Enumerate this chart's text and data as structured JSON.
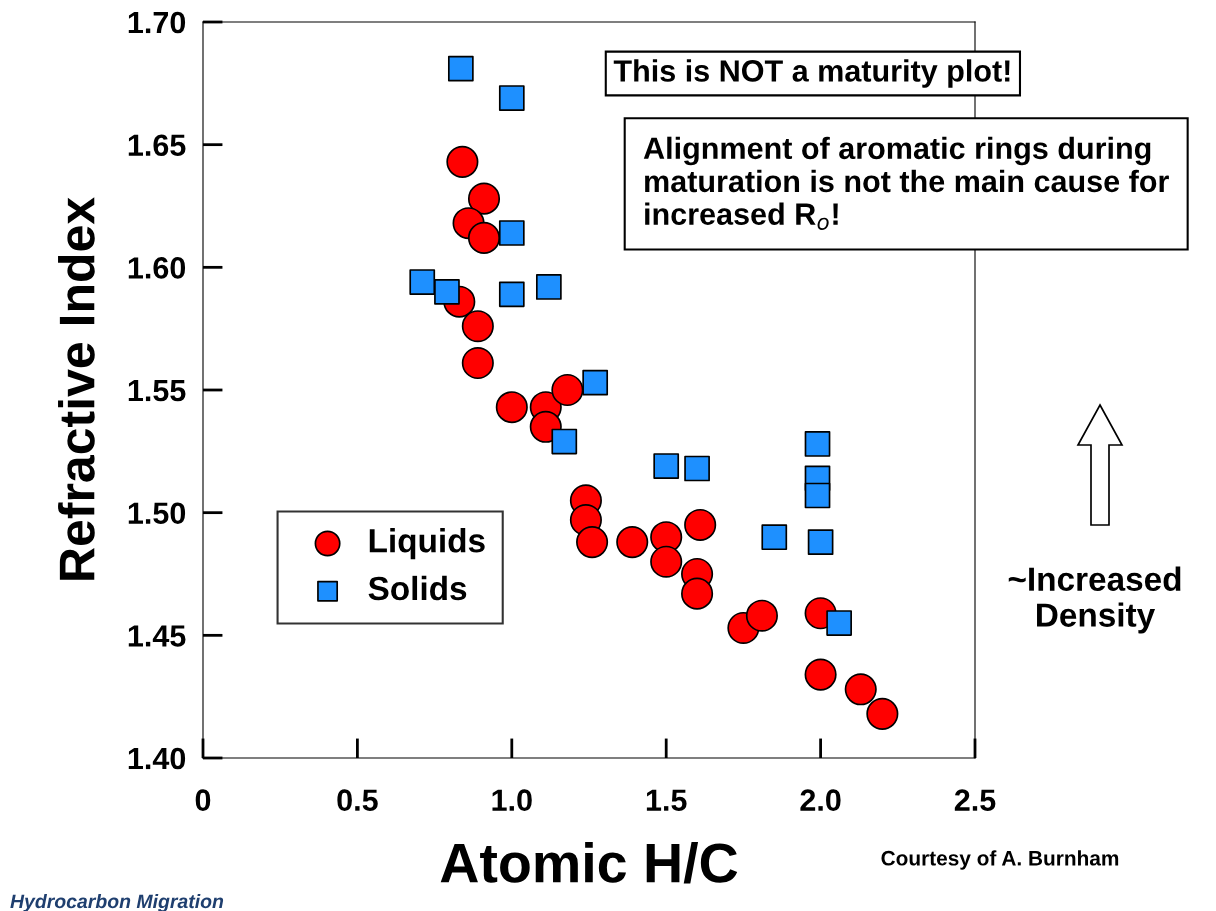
{
  "chart_data": {
    "type": "scatter",
    "xlabel": "Atomic H/C",
    "ylabel": "Refractive Index",
    "xlim": [
      0,
      2.5
    ],
    "xticks": [
      0,
      {
        "value": 0.5,
        "label": "0.5"
      },
      {
        "value": 1.0,
        "label": "1.0"
      },
      {
        "value": 1.5,
        "label": "1.5"
      },
      {
        "value": 2.0,
        "label": "2.0"
      },
      {
        "value": 2.5,
        "label": "2.5"
      }
    ],
    "ylim": [
      1.4,
      1.7
    ],
    "yticks": [
      {
        "value": 1.4,
        "label": "1.40"
      },
      {
        "value": 1.45,
        "label": "1.45"
      },
      {
        "value": 1.5,
        "label": "1.50"
      },
      {
        "value": 1.55,
        "label": "1.55"
      },
      {
        "value": 1.6,
        "label": "1.60"
      },
      {
        "value": 1.65,
        "label": "1.65"
      },
      {
        "value": 1.7,
        "label": "1.70"
      }
    ],
    "grid": false,
    "legend": "left",
    "series": [
      {
        "name": "Liquids",
        "color": "#ff0000",
        "marker": "circle",
        "x": [
          0.84,
          0.91,
          0.86,
          0.91,
          0.83,
          0.89,
          0.89,
          1.0,
          1.11,
          1.11,
          1.18,
          1.24,
          1.24,
          1.26,
          1.39,
          1.5,
          1.5,
          1.61,
          1.6,
          1.6,
          1.75,
          1.81,
          2.0,
          2.0,
          2.13,
          2.2
        ],
        "values": [
          1.643,
          1.628,
          1.618,
          1.612,
          1.586,
          1.576,
          1.561,
          1.543,
          1.543,
          1.535,
          1.55,
          1.505,
          1.497,
          1.488,
          1.488,
          1.49,
          1.48,
          1.495,
          1.475,
          1.467,
          1.453,
          1.458,
          1.459,
          1.434,
          1.428,
          1.418
        ]
      },
      {
        "name": "Solids",
        "color": "#1e90ff",
        "marker": "square",
        "x": [
          0.835,
          1.0,
          1.0,
          0.71,
          0.79,
          1.0,
          1.12,
          1.27,
          1.17,
          1.5,
          1.6,
          1.99,
          1.99,
          1.99,
          1.85,
          2.0,
          2.06
        ],
        "values": [
          1.681,
          1.669,
          1.614,
          1.594,
          1.59,
          1.589,
          1.592,
          1.553,
          1.529,
          1.519,
          1.518,
          1.528,
          1.514,
          1.507,
          1.49,
          1.488,
          1.455
        ]
      }
    ],
    "annotations": [
      "This is NOT a maturity plot!",
      "Alignment of aromatic rings during maturation is not the main cause for increased R$_{o}$!",
      "~Increased Density",
      "Courtesy of A. Burnham",
      "Hydrocarbon Migration"
    ]
  }
}
